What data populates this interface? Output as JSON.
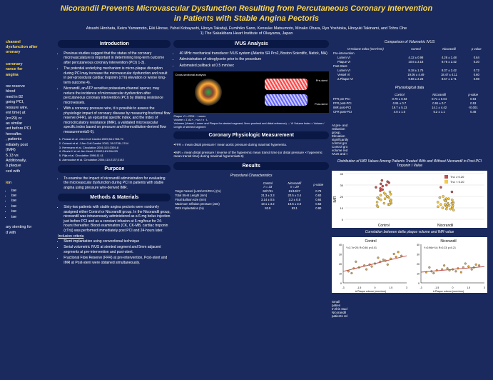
{
  "title_line1": "Nicorandil Prevents Microvascular Dysfunction Resulting from Percutaneous Coronary Intervention",
  "title_line2": "in Patients with Stable Angina Pectoris",
  "authors": "Atsushi Hirohata, Keizo Yamamoto, Eiki Hirose, Yuhei Kobayashi, Hiroya Takafuji, Fumihiko Sano, Kensuke Matsumoto, Minako Ohara, Ryo Yoshioka, Hiroyuki Takinami, and Tohru Ohe",
  "affiliation": "1) The Sakakibara Heart Institute of Okayama, Japan",
  "left": {
    "p1": "channel\ndysfunction after\noronary",
    "p2": "coronary\nrance for\nangina",
    "p3": "ow reserve\nblood\nmed in 82\ngoing PCI,\nressure wire.\nent time) at\n(n=29) or\nas similar\nust before PCI\nhereafter.\n, patients\nediately post\n(IMR)\n5.13 vs\nAdditionally,\n∆ plaque\nced with",
    "p4": "ion",
    "list": [
      "ise",
      "ise",
      "ise",
      "ise",
      "ise",
      "ise"
    ],
    "p5": "ary stenting for\nd with"
  },
  "intro": {
    "head": "Introduction",
    "bullets": [
      "Previous studies suggest that the status of the coronary microvasculature is important in determining long-term outcome after percutaneous coronary intervention (PCI) 1-3).",
      "The potential underlying mechanism is micro-plaque disruption during PCI may increase the microvascular dysfunction and result in peri-procedural cardiac troponin (cTn) elevation or worse long-term outcome 4).",
      "Nicorandil, an ATP sensitive potassium-channel opener, may reduce the incidence of microvascular dysfunction after percutaneous coronary intervention (PCI) by dilating resistance microvessels.",
      "With a coronary pressure wire, it is possible to assess the physiologic impact of coronary disease by measuring fractional flow reserve (FFR), an epicardial specific index, and the index of microcirculatory resistance (IMR), a validated microvascular specific index based on pressure and thermodilution-derived flow measurements5-6)."
    ],
    "refs": [
      "Prasad et al. J Am Coll Cardiol 2009;54:1765-70",
      "Cuisset et al. J Am Coll Cardiol 2002; 39:1738–1744",
      "Herrmann et al. Circulation 2001;103:2339-8",
      "Okorie K et al. Am Heart J 2002;161:594-53",
      "Pijls et al. Circulation 1996;11:11",
      "Aarnoudse et al. Circulation 2004;110:2137;2142"
    ]
  },
  "purpose": {
    "head": "Purpose",
    "text": "To examine the impact of nicorandil administration for evaluating the microvascular dysfunction during PCI in patients with stable angina using pressure wire-derived IMR."
  },
  "methods": {
    "head": "Methods & Materials",
    "b1": "Sixty-two patients with stable angina pectoris were randomly assigned either Control or Nicorandil group. In the Nicorandil group, nicorandil was intravenously administered as a 6-mg bolus injection just before PCI and as a constant infusion at 6-mg/hour for 24-hours thereafter. Blood examination (CK, CK-MB, cardiac troponin (cTn)) was performed immediately post PCI and 24-hours later.",
    "inc_head": "Inclusion criteria",
    "inc": [
      "Stent implantation using conventional technique",
      "Serial volumetric IVUS at stented segment and 5mm adjacent segments at pre-intervention and post-stent.",
      "Fractional Flow Reserve (FFR) at pre-intervention, Post-stent and IMR at Post-stent were obtained simultaneously."
    ]
  },
  "ivus": {
    "head": "IVUS Analysis",
    "bullets": [
      "40 MHz mechanical transducer IVUS system (Atlantis SR Pro2, Boston Scientific, Natick, MA)",
      "Administration of nitroglycerin prior to the procedure",
      "Automated pullback at 0.5 mm/sec"
    ],
    "label1": "Cross-sectional analysis",
    "label2": "Pre-stent",
    "label3": "Post-stent",
    "caption1": "Plaque VI = EEM − Lumen",
    "caption2": "Volume = Σ A1+...+An / n ∙ L",
    "note": "Volumes (Vessel, Lumen and Plaque for stented segment, 5mm proximal and distal reference) → VI Volume Index = Volume / Length of stented segment"
  },
  "cpm": {
    "head": "Coronary Physiologic Measurement",
    "ffr": "•FFR = mean distal pressure / mean aortic pressure during maximal hyperemia.",
    "imr": "•IMR = mean distal pressure / inverse of the hyperemic mean transit time (or distal pressure × hyperemic mean transit time) during maximal hyperemia5-6)"
  },
  "results": {
    "head": "Results"
  },
  "proc": {
    "title": "Procedural Characteristics",
    "cols": [
      "",
      "Control\nn = 33",
      "Nicorandil\nn = 29",
      "p-value"
    ],
    "rows": [
      [
        "Target Vessel (LAD/LCX/RCA) (%)",
        "62/7/31",
        "61/12/27",
        "0.79"
      ],
      [
        "Total Stent Length (mm)",
        "21.3 ± 3.3",
        "20.5 ± 3.4",
        "0.63"
      ],
      [
        "Final Balloon size (mm)",
        "3.14 ± 0.5",
        "3.2 ± 0.5",
        "0.64"
      ],
      [
        "Maximum Inflation pressure (atm)",
        "19.1 ± 3.2",
        "19.6 ± 3.0",
        "0.53"
      ],
      [
        "DES Implantation (%)",
        "93.9",
        "93.1",
        "0.90"
      ]
    ]
  },
  "volivus": {
    "title": "Comparison of Volumetric IVUS",
    "cols": [
      "VI:Volume Index (mm³/mm)",
      "Control",
      "Nicorandil",
      "p-value"
    ],
    "grp1": "Pre-intervention",
    "rows1": [
      [
        "Lumen VI",
        "4.12 ± 0.98",
        "4.26 ± 1.48",
        "0.64"
      ],
      [
        "Plaque VI",
        "10.6 ± 3.18",
        "9.76 ± 2.42",
        "0.20"
      ]
    ],
    "grp2": "Post-Stent",
    "rows2": [
      [
        "Lumen VI",
        "8.18 ± 1.75",
        "8.37 ± 2.42",
        "0.72"
      ],
      [
        "Vessel VI",
        "19.05 ± 4.49",
        "18.47 ± 4.11",
        "0.60"
      ],
      [
        "∆ Plaque VI",
        "9.56 ± 2.23",
        "8.57 ± 2.71",
        "0.98"
      ]
    ]
  },
  "phys": {
    "title": "Physiological data",
    "cols": [
      "",
      "Control",
      "Nicorandil",
      "p-value"
    ],
    "rows": [
      [
        "FFR pre-PCI",
        "0.70 ± 0.03",
        "0.71 ± 0.04",
        "0.94"
      ],
      [
        "FFR post-PCI",
        "0.91 ± 0.7",
        "0.91 ± 0.7",
        "0.53"
      ],
      [
        "IMR post-PCI",
        "19.7 ± 5.13",
        "14.1 ± 4.42",
        "<0.001"
      ],
      [
        "CFR post-PCI",
        "4.0 ± 1.0",
        "5.2 ± 1.1",
        "0.48"
      ]
    ]
  },
  "scatter": {
    "title": "Distribution of IMR Values Among Patients Treated With and Without Nicorandil in Post-PCI Troponin I Value",
    "ylabel": "IMR",
    "ylim": [
      0,
      40
    ],
    "ytick_step": 10,
    "groups": [
      "Control",
      "Nicorandil"
    ],
    "legend": [
      "Tn-I ≥ 0.20",
      "Tn-I < 0.20"
    ],
    "colors": {
      "high": "#c0504d",
      "low": "#f2c94c",
      "bg": "#ffffff"
    },
    "control_high": [
      28,
      30,
      31,
      32,
      26,
      29,
      33,
      27,
      25,
      34
    ],
    "control_low": [
      12,
      14,
      15,
      16,
      18,
      20,
      22,
      24,
      19,
      17,
      21,
      23,
      13,
      11,
      15,
      16,
      18,
      20,
      22,
      19,
      17,
      14,
      13
    ],
    "nico_high": [
      28,
      24
    ],
    "nico_low": [
      8,
      9,
      10,
      11,
      12,
      13,
      14,
      15,
      16,
      17,
      18,
      19,
      20,
      10,
      12,
      14,
      16,
      18,
      11,
      13,
      15,
      17,
      9,
      11,
      13,
      14,
      12
    ]
  },
  "corr": {
    "title": "Correlation between delta plaque volume and IMR value",
    "panels": [
      "Control",
      "Nicorandil"
    ],
    "xlabel": "∆ Plaque volume (mm³/mm)",
    "ylabel": "IMR",
    "xlim": [
      -3,
      3
    ],
    "xtick_step": 1.5,
    "ylim": [
      0,
      40
    ],
    "ytick_step": 10,
    "ctrl_eqn": "Y=2.7x+20; R=0.50; p<0.01",
    "nico_eqn": "Y=0.96x+14; R=0.23; p=0.21",
    "colors": {
      "pt": "#d9a441",
      "line": "#c0504d",
      "bg": "#ffffff"
    },
    "ctrl_pts": [
      [
        -2.5,
        12
      ],
      [
        -2,
        15
      ],
      [
        -1.5,
        16
      ],
      [
        -1,
        18
      ],
      [
        -0.5,
        19
      ],
      [
        0,
        20
      ],
      [
        0.5,
        22
      ],
      [
        1,
        23
      ],
      [
        1.5,
        25
      ],
      [
        2,
        27
      ],
      [
        2.5,
        28
      ],
      [
        -1.8,
        22
      ],
      [
        -0.8,
        14
      ],
      [
        0.3,
        26
      ],
      [
        1.2,
        19
      ],
      [
        1.8,
        30
      ],
      [
        2.2,
        32
      ],
      [
        -2.2,
        10
      ],
      [
        0.8,
        24
      ],
      [
        -0.3,
        17
      ]
    ],
    "nico_pts": [
      [
        -2.5,
        11
      ],
      [
        -2,
        12
      ],
      [
        -1.5,
        13
      ],
      [
        -1,
        14
      ],
      [
        -0.5,
        15
      ],
      [
        0,
        14
      ],
      [
        0.5,
        15
      ],
      [
        1,
        16
      ],
      [
        1.5,
        17
      ],
      [
        2,
        16
      ],
      [
        2.5,
        18
      ],
      [
        -1.8,
        10
      ],
      [
        -0.8,
        18
      ],
      [
        0.3,
        12
      ],
      [
        1.2,
        20
      ],
      [
        1.8,
        14
      ],
      [
        -2.2,
        16
      ],
      [
        0.8,
        11
      ],
      [
        -0.3,
        13
      ],
      [
        2.2,
        19
      ]
    ]
  },
  "r1": "At pre- and\nreduction\ngroup.",
  "r2": "Elevation\nsignificantly\ncontrol gro",
  "r3": "Control gro\nvolume red\nIVUS and I",
  "r4": "Small\npatien",
  "r5": "In this stud\nNicorandil\npatients rel"
}
